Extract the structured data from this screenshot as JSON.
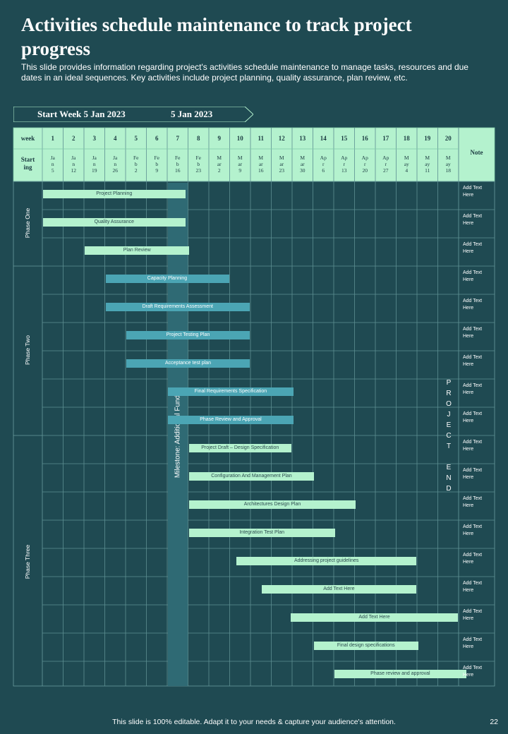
{
  "title": "Activities schedule maintenance to track project progress",
  "subtitle": "This slide provides information regarding project's activities schedule maintenance to manage tasks, resources and due dates in an ideal sequences. Key activities include project planning, quality assurance, plan review, etc.",
  "ribbon": {
    "label1": "Start Week 5 Jan 2023",
    "label2": "5 Jan 2023"
  },
  "header": {
    "week_label": "week",
    "starting_label": "Start ing",
    "note_label": "Note",
    "weeks": [
      "1",
      "2",
      "3",
      "4",
      "5",
      "6",
      "7",
      "8",
      "9",
      "10",
      "11",
      "12",
      "13",
      "14",
      "15",
      "16",
      "17",
      "18",
      "19",
      "20"
    ],
    "dates": [
      [
        "Ja",
        "n",
        "5"
      ],
      [
        "Ja",
        "n",
        "12"
      ],
      [
        "Ja",
        "n",
        "19"
      ],
      [
        "Ja",
        "n",
        "26"
      ],
      [
        "Fe",
        "b",
        "2"
      ],
      [
        "Fe",
        "b",
        "9"
      ],
      [
        "Fe",
        "b",
        "16"
      ],
      [
        "Fe",
        "b",
        "23"
      ],
      [
        "M",
        "ar",
        "2"
      ],
      [
        "M",
        "ar",
        "9"
      ],
      [
        "M",
        "ar",
        "16"
      ],
      [
        "M",
        "ar",
        "23"
      ],
      [
        "M",
        "ar",
        "30"
      ],
      [
        "Ap",
        "r",
        "6"
      ],
      [
        "Ap",
        "r",
        "13"
      ],
      [
        "Ap",
        "r",
        "20"
      ],
      [
        "Ap",
        "r",
        "27"
      ],
      [
        "M",
        "ay",
        "4"
      ],
      [
        "M",
        "ay",
        "11"
      ],
      [
        "M",
        "ay",
        "18"
      ]
    ]
  },
  "phases": [
    {
      "name": "Phase One",
      "rows": 3
    },
    {
      "name": "Phase Two",
      "rows": 6
    },
    {
      "name": "Phase Three",
      "rows": 9
    }
  ],
  "tasks": [
    {
      "label": "Project Planning",
      "start": 1,
      "end": 6.9,
      "style": "light"
    },
    {
      "label": "Quality Assurance",
      "start": 1,
      "end": 6.9,
      "style": "light"
    },
    {
      "label": "Plan Review",
      "start": 3,
      "end": 7.1,
      "style": "light"
    },
    {
      "label": "Capacity Planning",
      "start": 4,
      "end": 9,
      "style": "teal"
    },
    {
      "label": "Draft Requirements  Assessment",
      "start": 4,
      "end": 10,
      "style": "teal"
    },
    {
      "label": "Project Testing Plan",
      "start": 5,
      "end": 10,
      "style": "teal"
    },
    {
      "label": "Acceptance  test plan",
      "start": 5,
      "end": 10,
      "style": "teal"
    },
    {
      "label": "Final Requirements Specification",
      "start": 7,
      "end": 12.1,
      "style": "teal"
    },
    {
      "label": "Phase  Review and Approval",
      "start": 7,
      "end": 12.1,
      "style": "teal"
    },
    {
      "label": "Project  Draft – Design  Specification",
      "start": 8,
      "end": 12,
      "style": "light"
    },
    {
      "label": "Configuration  And  Management  Plan",
      "start": 8,
      "end": 13.1,
      "style": "light"
    },
    {
      "label": "Architectures  Design Plan",
      "start": 8,
      "end": 15.1,
      "style": "light"
    },
    {
      "label": "Integration  Test Plan",
      "start": 8,
      "end": 14.1,
      "style": "light"
    },
    {
      "label": "Addressing project guidelines",
      "start": 10.3,
      "end": 18,
      "style": "light"
    },
    {
      "label": "Add Text Here",
      "start": 11.5,
      "end": 18,
      "style": "light"
    },
    {
      "label": "Add Text Here",
      "start": 12.9,
      "end": 20,
      "style": "light"
    },
    {
      "label": "Final design specifications",
      "start": 14,
      "end": 18.1,
      "style": "light"
    },
    {
      "label": "Phase  review and  approval",
      "start": 15,
      "end": 20.4,
      "style": "light"
    }
  ],
  "notes": [
    "Add Text Here",
    "Add Text Here",
    "Add Text Here",
    "Add Text Here",
    "Add Text Here",
    "Add Text Here",
    "Add Text Here",
    "Add Text Here",
    "Add Text Here",
    "Add Text Here",
    "Add Text Here",
    "Add Text Here",
    "Add Text Here",
    "Add Text Here",
    "Add Text Here",
    "Add Text Here",
    "Add Text Here",
    "Add Text Here"
  ],
  "milestone": "Milestone: Additional Funds",
  "project_end": [
    "P",
    "R",
    "O",
    "J",
    "E",
    "C",
    "T",
    "",
    "E",
    "N",
    "D"
  ],
  "footer": "This slide is 100% editable. Adapt it to your needs & capture your audience's attention.",
  "page_number": "22",
  "colors": {
    "background": "#1f4a52",
    "header": "#b4f2ce",
    "teal_bar": "#4ba5b4",
    "light_bar": "#b4f2ce",
    "milestone": "#2f6a74"
  }
}
